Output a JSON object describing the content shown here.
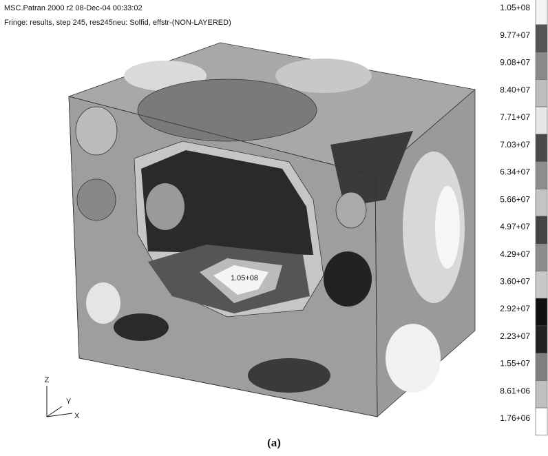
{
  "header": {
    "title": "MSC.Patran 2000 r2 08-Dec-04 00:33:02",
    "subtitle": "Fringe: results, step   245, res245neu: Solfid, effstr-(NON-LAYERED)"
  },
  "legend": [
    {
      "label": "1.05+08",
      "color": "#f4f4f4"
    },
    {
      "label": "9.77+07",
      "color": "#555555"
    },
    {
      "label": "9.08+07",
      "color": "#8a8a8a"
    },
    {
      "label": "8.40+07",
      "color": "#bdbdbd"
    },
    {
      "label": "7.71+07",
      "color": "#e6e6e6"
    },
    {
      "label": "7.03+07",
      "color": "#4a4a4a"
    },
    {
      "label": "6.34+07",
      "color": "#8e8e8e"
    },
    {
      "label": "5.66+07",
      "color": "#c4c4c4"
    },
    {
      "label": "4.97+07",
      "color": "#444444"
    },
    {
      "label": "4.29+07",
      "color": "#8c8c8c"
    },
    {
      "label": "3.60+07",
      "color": "#c8c8c8"
    },
    {
      "label": "2.92+07",
      "color": "#111111"
    },
    {
      "label": "2.23+07",
      "color": "#222222"
    },
    {
      "label": "1.55+07",
      "color": "#808080"
    },
    {
      "label": "8.61+06",
      "color": "#c0c0c0"
    },
    {
      "label": "1.76+06",
      "color": "#ffffff"
    }
  ],
  "model": {
    "max_label": "1.05+08"
  },
  "triad": {
    "z": "Z",
    "y": "Y",
    "x": "X"
  },
  "caption": "(a)"
}
